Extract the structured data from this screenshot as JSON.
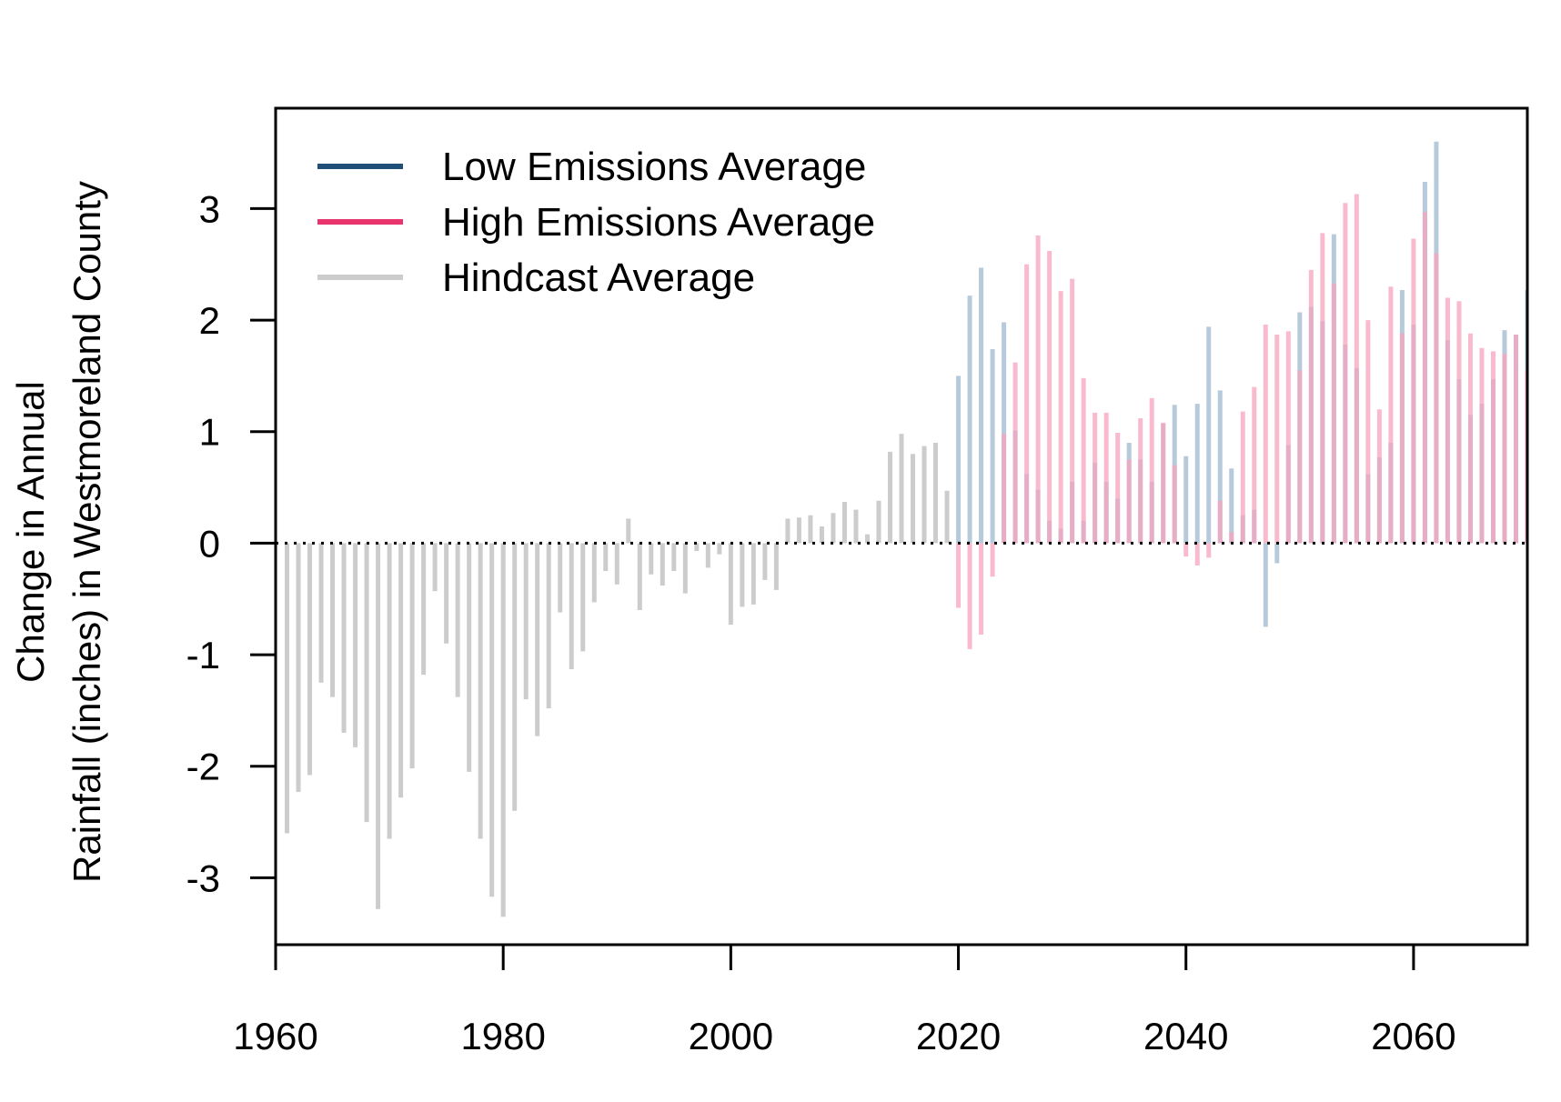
{
  "chart_data": {
    "type": "bar",
    "title": "",
    "xlabel": "",
    "ylabel": [
      "Change in Annual",
      "Rainfall (inches) in Westmoreland County"
    ],
    "xlim": [
      1960,
      2070
    ],
    "ylim": [
      -3.6,
      3.9
    ],
    "x_ticks": [
      1960,
      1980,
      2000,
      2020,
      2040,
      2060
    ],
    "y_ticks": [
      -3,
      -2,
      -1,
      0,
      1,
      2,
      3
    ],
    "grid": false,
    "legend_position": "top-left",
    "reference_line": {
      "y": 0,
      "style": "dotted"
    },
    "legend": [
      {
        "key": "low",
        "label": "Low Emissions Average",
        "color": "#1f4e79"
      },
      {
        "key": "high",
        "label": "High Emissions Average",
        "color": "#e8336d"
      },
      {
        "key": "hind",
        "label": "Hindcast Average",
        "color": "#cccccc"
      }
    ],
    "series": [
      {
        "key": "hind",
        "name": "Hindcast Average",
        "bar_color": "#cccccc",
        "x": [
          1961,
          1962,
          1963,
          1964,
          1965,
          1966,
          1967,
          1968,
          1969,
          1970,
          1971,
          1972,
          1973,
          1974,
          1975,
          1976,
          1977,
          1978,
          1979,
          1980,
          1981,
          1982,
          1983,
          1984,
          1985,
          1986,
          1987,
          1988,
          1989,
          1990,
          1991,
          1992,
          1993,
          1994,
          1995,
          1996,
          1997,
          1998,
          1999,
          2000,
          2001,
          2002,
          2003,
          2004,
          2005,
          2006,
          2007,
          2008,
          2009,
          2010,
          2011,
          2012,
          2013,
          2014,
          2015,
          2016,
          2017,
          2018,
          2019
        ],
        "values": [
          -2.6,
          -2.23,
          -2.08,
          -1.25,
          -1.38,
          -1.7,
          -1.83,
          -2.5,
          -3.28,
          -2.65,
          -2.28,
          -2.02,
          -1.18,
          -0.43,
          -0.9,
          -1.38,
          -2.05,
          -2.65,
          -3.17,
          -3.35,
          -2.4,
          -1.4,
          -1.73,
          -1.48,
          -0.62,
          -1.13,
          -0.97,
          -0.53,
          -0.25,
          -0.37,
          0.22,
          -0.6,
          -0.28,
          -0.38,
          -0.25,
          -0.45,
          -0.07,
          -0.22,
          -0.1,
          -0.73,
          -0.57,
          -0.55,
          -0.33,
          -0.42,
          0.22,
          0.23,
          0.25,
          0.15,
          0.27,
          0.37,
          0.3,
          0.08,
          0.38,
          0.82,
          0.98,
          0.8,
          0.87,
          0.9,
          0.47
        ]
      },
      {
        "key": "low",
        "name": "Low Emissions Average",
        "bar_color": "#9db8cf",
        "x": [
          2020,
          2021,
          2022,
          2023,
          2024,
          2025,
          2026,
          2027,
          2028,
          2029,
          2030,
          2031,
          2032,
          2033,
          2034,
          2035,
          2036,
          2037,
          2038,
          2039,
          2040,
          2041,
          2042,
          2043,
          2044,
          2045,
          2046,
          2047,
          2048,
          2049,
          2050,
          2051,
          2052,
          2053,
          2054,
          2055,
          2056,
          2057,
          2058,
          2059,
          2060,
          2061,
          2062,
          2063,
          2064,
          2065,
          2066,
          2067,
          2068,
          2069,
          2070
        ],
        "values": [
          1.5,
          2.22,
          2.47,
          1.74,
          1.98,
          1.01,
          0.62,
          0.48,
          0.2,
          0.13,
          0.55,
          0.2,
          0.72,
          0.55,
          0.4,
          0.9,
          0.75,
          0.55,
          1.07,
          1.24,
          0.78,
          1.25,
          1.94,
          1.37,
          0.67,
          0.25,
          0.3,
          -0.75,
          -0.18,
          0.88,
          2.07,
          2.12,
          1.99,
          2.77,
          1.78,
          1.57,
          0.62,
          0.77,
          0.9,
          2.27,
          1.96,
          3.24,
          3.6,
          1.82,
          1.47,
          1.15,
          1.25,
          1.47,
          1.91,
          1.87,
          2.27
        ]
      },
      {
        "key": "high",
        "name": "High Emissions Average",
        "bar_color": "#f7a3bd",
        "x": [
          2020,
          2021,
          2022,
          2023,
          2024,
          2025,
          2026,
          2027,
          2028,
          2029,
          2030,
          2031,
          2032,
          2033,
          2034,
          2035,
          2036,
          2037,
          2038,
          2039,
          2040,
          2041,
          2042,
          2043,
          2044,
          2045,
          2046,
          2047,
          2048,
          2049,
          2050,
          2051,
          2052,
          2053,
          2054,
          2055,
          2056,
          2057,
          2058,
          2059,
          2060,
          2061,
          2062,
          2063,
          2064,
          2065,
          2066,
          2067,
          2068,
          2069,
          2070
        ],
        "values": [
          -0.58,
          -0.95,
          -0.82,
          -0.3,
          0.98,
          1.62,
          2.5,
          2.76,
          2.62,
          2.26,
          2.37,
          1.48,
          1.17,
          1.17,
          0.99,
          0.75,
          1.12,
          1.3,
          1.08,
          0.7,
          -0.12,
          -0.2,
          -0.13,
          0.38,
          0.1,
          1.18,
          1.4,
          1.96,
          1.87,
          1.9,
          1.55,
          2.45,
          2.78,
          2.33,
          3.05,
          3.13,
          2.0,
          1.2,
          2.3,
          1.88,
          2.73,
          2.97,
          2.6,
          2.2,
          2.17,
          1.88,
          1.75,
          1.72,
          1.7,
          1.87,
          1.55
        ]
      }
    ]
  }
}
